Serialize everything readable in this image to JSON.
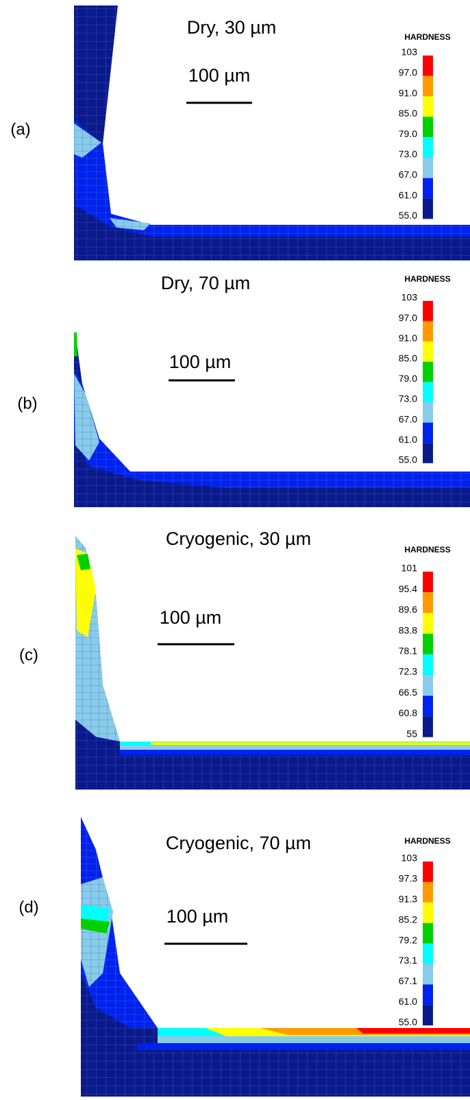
{
  "panels": [
    {
      "label": "(a)",
      "title": "Dry, 30 µm",
      "scale_bar": "100 µm",
      "legend": {
        "title": "HARDNESS",
        "labels": [
          "103",
          "97.0",
          "91.0",
          "85.0",
          "79.0",
          "73.0",
          "67.0",
          "61.0",
          "55.0"
        ]
      }
    },
    {
      "label": "(b)",
      "title": "Dry, 70 µm",
      "scale_bar": "100 µm",
      "legend": {
        "title": "HARDNESS",
        "labels": [
          "103",
          "97.0",
          "91.0",
          "85.0",
          "79.0",
          "73.0",
          "67.0",
          "61.0",
          "55.0"
        ]
      }
    },
    {
      "label": "(c)",
      "title": "Cryogenic, 30 µm",
      "scale_bar": "100 µm",
      "legend": {
        "title": "HARDNESS",
        "labels": [
          "101",
          "95.4",
          "89.6",
          "83.8",
          "78.1",
          "72.3",
          "66.5",
          "60.8",
          "55"
        ]
      }
    },
    {
      "label": "(d)",
      "title": "Cryogenic, 70 µm",
      "scale_bar": "100 µm",
      "legend": {
        "title": "HARDNESS",
        "labels": [
          "103",
          "97.3",
          "91.3",
          "85.2",
          "79.2",
          "73.1",
          "67.1",
          "61.0",
          "55.0"
        ]
      }
    }
  ]
}
